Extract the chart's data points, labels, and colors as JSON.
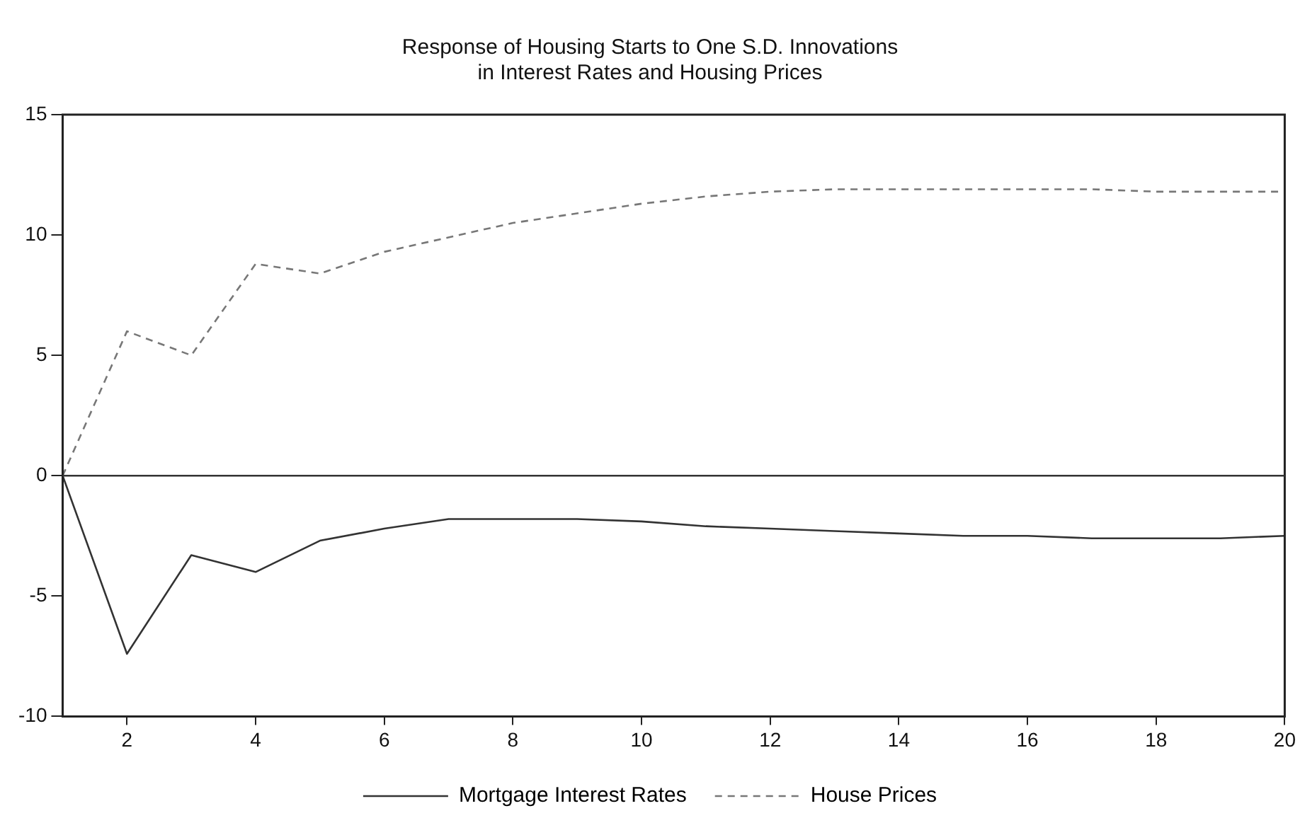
{
  "chart_data": {
    "type": "line",
    "title": "Response of Housing Starts to One S.D. Innovations in Interest Rates and Housing Prices",
    "x": [
      1,
      2,
      3,
      4,
      5,
      6,
      7,
      8,
      9,
      10,
      11,
      12,
      13,
      14,
      15,
      16,
      17,
      18,
      19,
      20
    ],
    "series": [
      {
        "name": "Mortgage Interest Rates",
        "color": "#333333",
        "line_style": "solid",
        "values": [
          0,
          -7.4,
          -3.3,
          -4.0,
          -2.7,
          -2.2,
          -1.8,
          -1.8,
          -1.8,
          -1.9,
          -2.1,
          -2.2,
          -2.3,
          -2.4,
          -2.5,
          -2.5,
          -2.6,
          -2.6,
          -2.6,
          -2.5
        ]
      },
      {
        "name": "House Prices",
        "color": "#777777",
        "line_style": "dashed",
        "values": [
          0,
          6.0,
          5.0,
          8.8,
          8.4,
          9.3,
          9.9,
          10.5,
          10.9,
          11.3,
          11.6,
          11.8,
          11.9,
          11.9,
          11.9,
          11.9,
          11.9,
          11.8,
          11.8,
          11.8
        ]
      }
    ],
    "xlim": [
      1,
      20
    ],
    "xticks": [
      2,
      4,
      6,
      8,
      10,
      12,
      14,
      16,
      18,
      20
    ],
    "ylim": [
      -10,
      15
    ],
    "yticks": [
      -10,
      -5,
      0,
      5,
      10,
      15
    ],
    "ref_lines": [
      {
        "axis": "y",
        "value": 0,
        "color": "#333333"
      }
    ],
    "grid": false,
    "legend": "bottom",
    "marker": "none"
  }
}
